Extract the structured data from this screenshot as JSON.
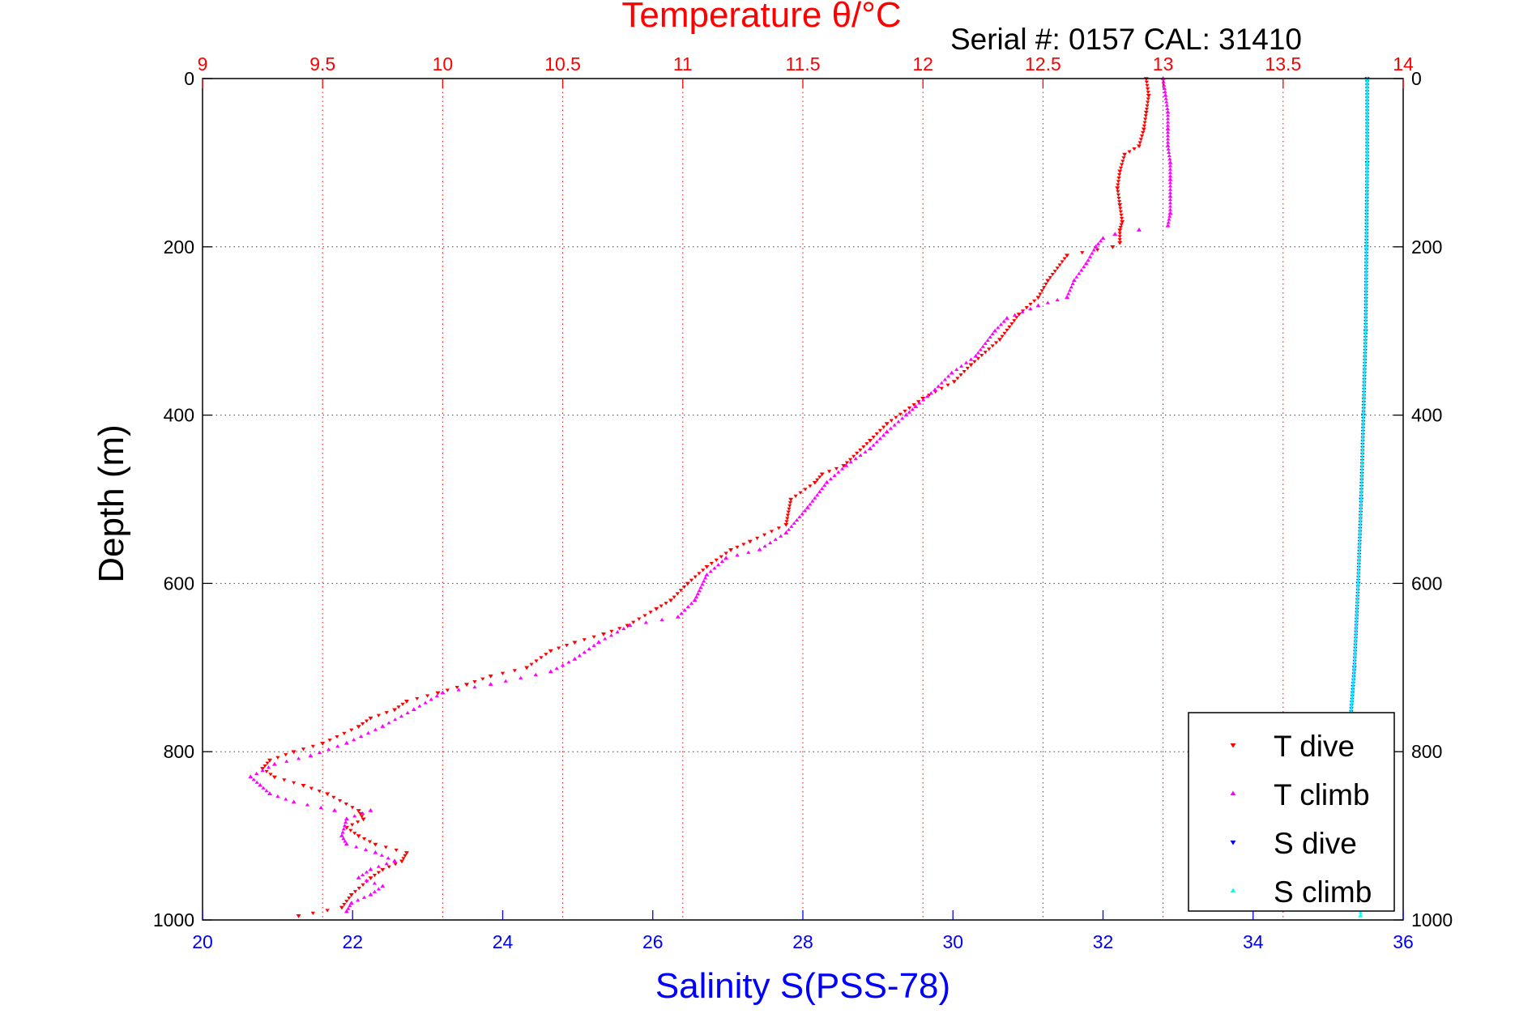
{
  "chart_data": {
    "type": "scatter",
    "title": "Temperature θ/°C",
    "subtitle": "Serial #: 0157  CAL: 31410",
    "xlabel": "Salinity S(PSS-78)",
    "x2label": "Temperature θ/°C",
    "ylabel": "Depth (m)",
    "xlim": [
      20,
      36
    ],
    "x2lim": [
      9,
      14
    ],
    "ylim": [
      1000,
      0
    ],
    "xticks": [
      "20",
      "22",
      "24",
      "26",
      "28",
      "30",
      "32",
      "34",
      "36"
    ],
    "x2ticks": [
      "9",
      "9.5",
      "10",
      "10.5",
      "11",
      "11.5",
      "12",
      "12.5",
      "13",
      "13.5",
      "14"
    ],
    "yticks": [
      "0",
      "200",
      "400",
      "600",
      "800",
      "1000"
    ],
    "grid": true,
    "legend_position": "bottom-right",
    "series": [
      {
        "name": "T dive",
        "axis": "temperature",
        "marker": "triangle-down",
        "color": "#ff0000",
        "points": [
          [
            12.93,
            0
          ],
          [
            12.94,
            20
          ],
          [
            12.93,
            40
          ],
          [
            12.92,
            60
          ],
          [
            12.9,
            80
          ],
          [
            12.84,
            90
          ],
          [
            12.82,
            110
          ],
          [
            12.81,
            130
          ],
          [
            12.82,
            150
          ],
          [
            12.83,
            170
          ],
          [
            12.82,
            180
          ],
          [
            12.82,
            195
          ],
          [
            12.79,
            200
          ],
          [
            12.6,
            210
          ],
          [
            12.52,
            240
          ],
          [
            12.48,
            260
          ],
          [
            12.4,
            280
          ],
          [
            12.32,
            310
          ],
          [
            12.2,
            340
          ],
          [
            12.13,
            360
          ],
          [
            12.0,
            380
          ],
          [
            11.85,
            410
          ],
          [
            11.78,
            430
          ],
          [
            11.67,
            460
          ],
          [
            11.58,
            470
          ],
          [
            11.55,
            480
          ],
          [
            11.45,
            500
          ],
          [
            11.43,
            530
          ],
          [
            11.28,
            550
          ],
          [
            11.2,
            560
          ],
          [
            11.1,
            580
          ],
          [
            11.02,
            600
          ],
          [
            10.95,
            620
          ],
          [
            10.89,
            630
          ],
          [
            10.77,
            650
          ],
          [
            10.67,
            660
          ],
          [
            10.55,
            670
          ],
          [
            10.45,
            680
          ],
          [
            10.35,
            700
          ],
          [
            10.2,
            710
          ],
          [
            10.1,
            720
          ],
          [
            9.98,
            730
          ],
          [
            9.85,
            740
          ],
          [
            9.8,
            750
          ],
          [
            9.7,
            760
          ],
          [
            9.65,
            770
          ],
          [
            9.5,
            790
          ],
          [
            9.38,
            800
          ],
          [
            9.28,
            810
          ],
          [
            9.25,
            820
          ],
          [
            9.3,
            830
          ],
          [
            9.42,
            840
          ],
          [
            9.52,
            850
          ],
          [
            9.65,
            870
          ],
          [
            9.67,
            880
          ],
          [
            9.6,
            890
          ],
          [
            9.65,
            900
          ],
          [
            9.72,
            910
          ],
          [
            9.85,
            920
          ],
          [
            9.83,
            930
          ],
          [
            9.75,
            940
          ],
          [
            9.7,
            950
          ],
          [
            9.62,
            970
          ],
          [
            9.58,
            985
          ],
          [
            9.4,
            995
          ]
        ]
      },
      {
        "name": "T climb",
        "axis": "temperature",
        "marker": "triangle-up",
        "color": "#ff00ff",
        "points": [
          [
            13.0,
            0
          ],
          [
            13.01,
            20
          ],
          [
            13.02,
            40
          ],
          [
            13.02,
            60
          ],
          [
            13.02,
            80
          ],
          [
            13.03,
            100
          ],
          [
            13.03,
            120
          ],
          [
            13.03,
            140
          ],
          [
            13.03,
            160
          ],
          [
            13.02,
            175
          ],
          [
            12.9,
            180
          ],
          [
            12.8,
            185
          ],
          [
            12.75,
            190
          ],
          [
            12.72,
            200
          ],
          [
            12.68,
            220
          ],
          [
            12.63,
            240
          ],
          [
            12.6,
            260
          ],
          [
            12.48,
            270
          ],
          [
            12.35,
            285
          ],
          [
            12.3,
            300
          ],
          [
            12.22,
            330
          ],
          [
            12.12,
            350
          ],
          [
            12.05,
            370
          ],
          [
            11.97,
            390
          ],
          [
            11.93,
            400
          ],
          [
            11.85,
            420
          ],
          [
            11.78,
            440
          ],
          [
            11.68,
            460
          ],
          [
            11.6,
            480
          ],
          [
            11.52,
            510
          ],
          [
            11.43,
            540
          ],
          [
            11.32,
            560
          ],
          [
            11.18,
            570
          ],
          [
            11.1,
            590
          ],
          [
            11.05,
            620
          ],
          [
            10.98,
            640
          ],
          [
            10.78,
            650
          ],
          [
            10.65,
            670
          ],
          [
            10.55,
            690
          ],
          [
            10.45,
            705
          ],
          [
            10.2,
            720
          ],
          [
            10.0,
            730
          ],
          [
            9.88,
            750
          ],
          [
            9.75,
            770
          ],
          [
            9.6,
            790
          ],
          [
            9.45,
            805
          ],
          [
            9.3,
            815
          ],
          [
            9.2,
            830
          ],
          [
            9.24,
            840
          ],
          [
            9.28,
            850
          ],
          [
            9.38,
            860
          ],
          [
            9.55,
            870
          ],
          [
            9.7,
            870
          ],
          [
            9.6,
            880
          ],
          [
            9.58,
            900
          ],
          [
            9.6,
            910
          ],
          [
            9.72,
            920
          ],
          [
            9.8,
            930
          ],
          [
            9.7,
            940
          ],
          [
            9.65,
            950
          ],
          [
            9.75,
            960
          ],
          [
            9.7,
            970
          ],
          [
            9.62,
            980
          ],
          [
            9.6,
            990
          ]
        ]
      },
      {
        "name": "S dive",
        "axis": "salinity",
        "marker": "triangle-down",
        "color": "#0000ff",
        "points": [
          [
            35.52,
            0
          ],
          [
            35.52,
            100
          ],
          [
            35.51,
            200
          ],
          [
            35.5,
            300
          ],
          [
            35.47,
            400
          ],
          [
            35.44,
            500
          ],
          [
            35.4,
            600
          ],
          [
            35.35,
            700
          ],
          [
            35.3,
            760
          ]
        ]
      },
      {
        "name": "S climb",
        "axis": "salinity",
        "marker": "triangle-up",
        "color": "#00ffff",
        "points": [
          [
            35.52,
            0
          ],
          [
            35.52,
            100
          ],
          [
            35.51,
            200
          ],
          [
            35.5,
            300
          ],
          [
            35.47,
            400
          ],
          [
            35.44,
            500
          ],
          [
            35.4,
            600
          ],
          [
            35.35,
            700
          ],
          [
            35.3,
            760
          ],
          [
            35.4,
            850
          ],
          [
            35.45,
            950
          ],
          [
            35.43,
            995
          ]
        ]
      }
    ],
    "colors": {
      "temperature_axis": "#ff0000",
      "salinity_axis": "#0000ff",
      "depth_axis": "#000000"
    }
  }
}
